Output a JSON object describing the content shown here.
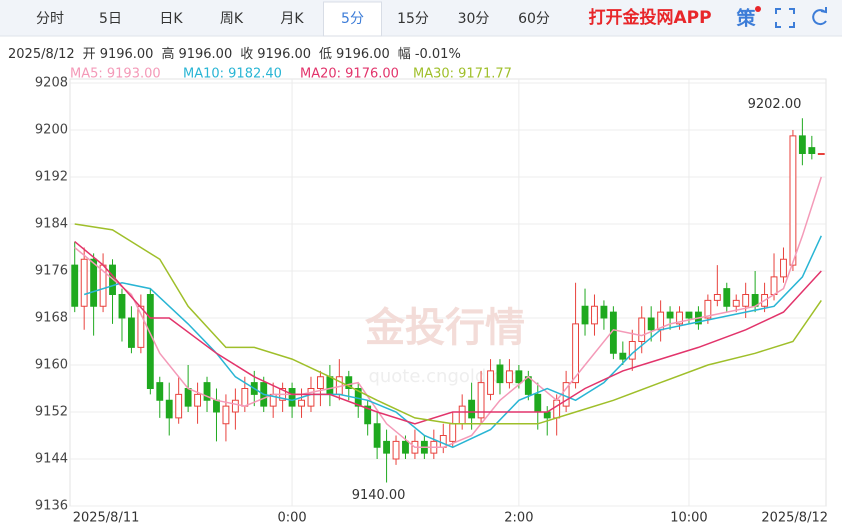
{
  "tabs": [
    "分时",
    "5日",
    "日K",
    "周K",
    "月K",
    "5分",
    "15分",
    "30分",
    "60分"
  ],
  "active_tab": 5,
  "promo": "打开金投网APP",
  "strategy": "策",
  "info": {
    "date": "2025/8/12",
    "items": [
      {
        "label": "开",
        "value": "9196.00"
      },
      {
        "label": "高",
        "value": "9196.00"
      },
      {
        "label": "收",
        "value": "9196.00"
      },
      {
        "label": "低",
        "value": "9196.00"
      },
      {
        "label": "幅",
        "value": "-0.01%"
      }
    ]
  },
  "watermark": {
    "brand": "金投行情",
    "site": "quote.cngold.org"
  },
  "chart_data": {
    "type": "candlestick",
    "categories": [
      "2025/8/11",
      null,
      null,
      null,
      null,
      null,
      null,
      null,
      null,
      null,
      null,
      null,
      null,
      null,
      null,
      null,
      null,
      null,
      null,
      null,
      null,
      null,
      null,
      "0:00",
      null,
      null,
      null,
      null,
      null,
      null,
      null,
      null,
      null,
      null,
      null,
      null,
      null,
      null,
      null,
      null,
      null,
      null,
      null,
      null,
      null,
      null,
      null,
      "2:00",
      null,
      null,
      null,
      null,
      null,
      null,
      null,
      null,
      null,
      null,
      null,
      null,
      null,
      null,
      null,
      null,
      null,
      "10:00",
      null,
      null,
      null,
      null,
      null,
      null,
      null,
      null,
      null,
      null,
      null,
      null,
      null,
      "2025/8/12"
    ],
    "open": [
      9177,
      9170,
      9178,
      9170,
      9177,
      9172,
      9168,
      9163,
      9172,
      9157,
      9154,
      9151,
      9156,
      9153,
      9157,
      9154,
      9150,
      9152,
      9153,
      9157,
      9157,
      9153,
      9154,
      9156,
      9153,
      9153,
      9156,
      9158,
      9155,
      9158,
      9156,
      9153,
      9150,
      9147,
      9144,
      9147,
      9145,
      9147,
      9145,
      9146,
      9147,
      9150,
      9154,
      9151,
      9155,
      9160,
      9157,
      9159,
      9158,
      9155,
      9152,
      9151,
      9153,
      9157,
      9170,
      9167,
      9170,
      9169,
      9162,
      9161,
      9164,
      9168,
      9166,
      9169,
      9167,
      9169,
      9169,
      9168,
      9171,
      9173,
      9170,
      9170,
      9172,
      9170,
      9172,
      9175,
      9177,
      9199,
      9197,
      9196
    ],
    "high": [
      9181,
      9180,
      9179,
      9179,
      9178,
      9173,
      9170,
      9172,
      9173,
      9158,
      9157,
      9158,
      9160,
      9157,
      9158,
      9156,
      9155,
      9156,
      9158,
      9159,
      9158,
      9157,
      9157,
      9157,
      9156,
      9158,
      9159,
      9160,
      9161,
      9159,
      9157,
      9154,
      9152,
      9149,
      9148,
      9148,
      9149,
      9148,
      9149,
      9150,
      9152,
      9155,
      9157,
      9159,
      9161,
      9161,
      9161,
      9160,
      9159,
      9157,
      9153,
      9155,
      9159,
      9174,
      9173,
      9172,
      9171,
      9170,
      9164,
      9166,
      9170,
      9170,
      9171,
      9170,
      9170,
      9169,
      9170,
      9172,
      9177,
      9174,
      9172,
      9174,
      9176,
      9174,
      9179,
      9180,
      9200,
      9202,
      9199,
      9196
    ],
    "low": [
      9169,
      9166,
      9165,
      9169,
      9167,
      9164,
      9162,
      9162,
      9155,
      9151,
      9148,
      9150,
      9152,
      9150,
      9152,
      9147,
      9147,
      9149,
      9152,
      9153,
      9152,
      9151,
      9152,
      9151,
      9151,
      9152,
      9153,
      9153,
      9154,
      9154,
      9151,
      9148,
      9144,
      9140,
      9143,
      9144,
      9144,
      9144,
      9144,
      9145,
      9146,
      9149,
      9149,
      9150,
      9154,
      9155,
      9156,
      9156,
      9154,
      9149,
      9148,
      9148,
      9152,
      9156,
      9165,
      9165,
      9166,
      9161,
      9160,
      9159,
      9162,
      9164,
      9164,
      9166,
      9166,
      9167,
      9166,
      9167,
      9170,
      9169,
      9169,
      9168,
      9169,
      9169,
      9171,
      9174,
      9176,
      9194,
      9195,
      9196
    ],
    "close": [
      9170,
      9178,
      9170,
      9177,
      9172,
      9168,
      9163,
      9170,
      9156,
      9154,
      9151,
      9155,
      9153,
      9155,
      9154,
      9152,
      9153,
      9154,
      9156,
      9155,
      9153,
      9155,
      9156,
      9153,
      9154,
      9156,
      9158,
      9155,
      9158,
      9156,
      9153,
      9150,
      9146,
      9145,
      9147,
      9145,
      9147,
      9145,
      9147,
      9148,
      9150,
      9153,
      9151,
      9157,
      9159,
      9157,
      9159,
      9157,
      9155,
      9152,
      9151,
      9154,
      9157,
      9167,
      9167,
      9170,
      9168,
      9162,
      9161,
      9164,
      9168,
      9166,
      9169,
      9168,
      9169,
      9168,
      9167,
      9171,
      9172,
      9170,
      9171,
      9172,
      9170,
      9172,
      9175,
      9178,
      9199,
      9196,
      9196,
      9196
    ],
    "up_color": "#e8413c",
    "down_color": "#1fa91f",
    "ylim": [
      9136,
      9208
    ],
    "yticks": [
      9136,
      9144,
      9152,
      9160,
      9168,
      9176,
      9184,
      9192,
      9200,
      9208
    ],
    "grid": true,
    "high_label": "9202.00",
    "low_label": "9140.00",
    "ma_lines": [
      {
        "label": "MA5: 9193.00",
        "color": "#f49ab8",
        "x": [
          0,
          3,
          6,
          9,
          12,
          15,
          18,
          21,
          24,
          27,
          30,
          33,
          36,
          39,
          42,
          45,
          48,
          51,
          54,
          57,
          60,
          63,
          66,
          69,
          72,
          75,
          77,
          79
        ],
        "values": [
          9180,
          9176,
          9172,
          9162,
          9156,
          9154,
          9153,
          9155,
          9155,
          9156,
          9157,
          9150,
          9146,
          9146,
          9148,
          9154,
          9158,
          9154,
          9160,
          9166,
          9165,
          9167,
          9168,
          9169,
          9170,
          9173,
          9182,
          9192
        ]
      },
      {
        "label": "MA10: 9182.40",
        "color": "#29b5d4",
        "x": [
          1,
          5,
          8,
          12,
          15,
          17,
          20,
          23,
          25,
          28,
          31,
          34,
          37,
          40,
          44,
          47,
          50,
          53,
          56,
          59,
          62,
          65,
          68,
          71,
          74,
          77,
          79
        ],
        "values": [
          9172,
          9174,
          9173,
          9167,
          9162,
          9158,
          9155,
          9154,
          9155,
          9155,
          9154,
          9152,
          9148,
          9146,
          9149,
          9154,
          9156,
          9154,
          9157,
          9162,
          9166,
          9167,
          9168,
          9169,
          9170,
          9175,
          9182
        ]
      },
      {
        "label": "MA20: 9176.00",
        "color": "#e2346b",
        "x": [
          0,
          3,
          8,
          10,
          15,
          19,
          23,
          27,
          32,
          36,
          40,
          44,
          50,
          54,
          58,
          62,
          66,
          71,
          75,
          79
        ],
        "values": [
          9181,
          9177,
          9168,
          9168,
          9162,
          9158,
          9155,
          9155,
          9152,
          9150,
          9152,
          9152,
          9152,
          9156,
          9159,
          9161,
          9163,
          9166,
          9169,
          9176
        ]
      },
      {
        "label": "MA30: 9171.77",
        "color": "#9fbf2a",
        "x": [
          0,
          4,
          9,
          12,
          16,
          19,
          23,
          27,
          32,
          36,
          40,
          45,
          49,
          53,
          57,
          62,
          67,
          72,
          76,
          79
        ],
        "values": [
          9184,
          9183,
          9178,
          9170,
          9163,
          9163,
          9161,
          9158,
          9154,
          9151,
          9150,
          9150,
          9150,
          9152,
          9154,
          9157,
          9160,
          9162,
          9164,
          9171
        ]
      }
    ]
  }
}
